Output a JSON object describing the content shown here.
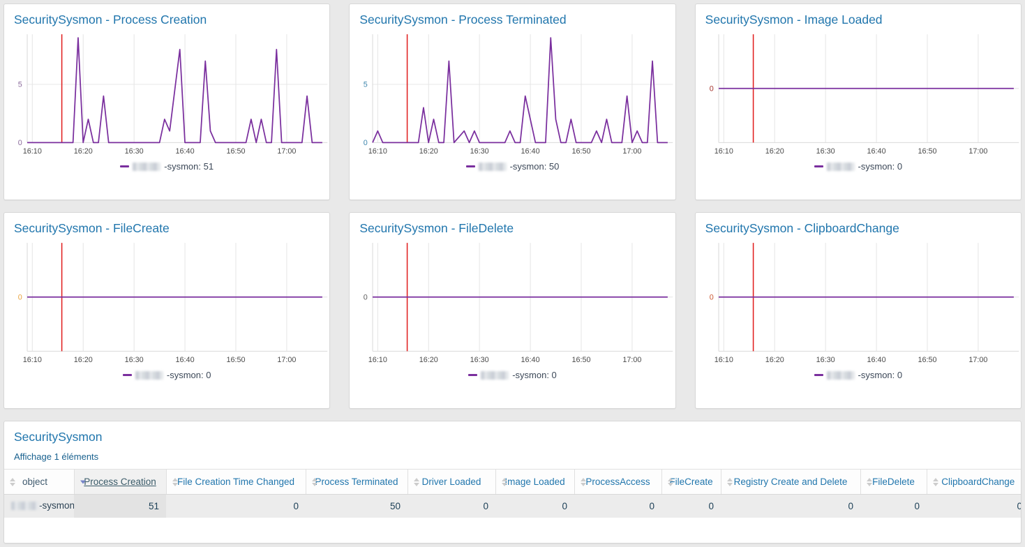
{
  "colors": {
    "title_blue": "#2176ad",
    "series_purple": "#7a2f9e",
    "threshold_red": "#e01f1f",
    "grid": "#e6e6e6",
    "axis": "#d9d9d9",
    "tick_text": "#4a4a4a",
    "legend_text": "#3c4858"
  },
  "axis": {
    "t_domain": [
      9,
      68
    ],
    "red_line_t": 15.8,
    "x_ticks": [
      {
        "t": 10,
        "label": "16:10"
      },
      {
        "t": 20,
        "label": "16:20"
      },
      {
        "t": 30,
        "label": "16:30"
      },
      {
        "t": 40,
        "label": "16:40"
      },
      {
        "t": 50,
        "label": "16:50"
      },
      {
        "t": 60,
        "label": "17:00"
      }
    ]
  },
  "panels": [
    {
      "title": "SecuritySysmon - Process Creation",
      "legend_suffix": "-sysmon: 51",
      "flat": false,
      "ylim": [
        0,
        9.3
      ],
      "y_ticks": [
        {
          "v": 5,
          "label": "5"
        },
        {
          "v": 0,
          "label": "0"
        }
      ],
      "y_label_color": "#8a6a9b",
      "chart_data": {
        "type": "line",
        "x_unit": "minutes after 16:00",
        "points": [
          [
            9,
            0
          ],
          [
            18,
            0
          ],
          [
            19,
            9
          ],
          [
            20,
            0
          ],
          [
            21,
            2
          ],
          [
            22,
            0
          ],
          [
            23,
            0
          ],
          [
            24,
            4
          ],
          [
            25,
            0
          ],
          [
            35,
            0
          ],
          [
            36,
            2
          ],
          [
            37,
            1
          ],
          [
            39,
            8
          ],
          [
            40,
            0
          ],
          [
            43,
            0
          ],
          [
            44,
            7
          ],
          [
            45,
            1
          ],
          [
            46,
            0
          ],
          [
            52,
            0
          ],
          [
            53,
            2
          ],
          [
            54,
            0
          ],
          [
            55,
            2
          ],
          [
            56,
            0
          ],
          [
            57,
            0
          ],
          [
            58,
            8
          ],
          [
            59,
            0
          ],
          [
            63,
            0
          ],
          [
            64,
            4
          ],
          [
            65,
            0
          ],
          [
            67,
            0
          ]
        ]
      }
    },
    {
      "title": "SecuritySysmon - Process Terminated",
      "legend_suffix": "-sysmon: 50",
      "flat": false,
      "ylim": [
        0,
        9.3
      ],
      "y_ticks": [
        {
          "v": 5,
          "label": "5"
        },
        {
          "v": 0,
          "label": "0"
        }
      ],
      "y_label_color": "#3e86ad",
      "chart_data": {
        "type": "line",
        "x_unit": "minutes after 16:00",
        "points": [
          [
            9,
            0
          ],
          [
            10,
            1
          ],
          [
            11,
            0
          ],
          [
            18,
            0
          ],
          [
            19,
            3
          ],
          [
            20,
            0
          ],
          [
            21,
            2
          ],
          [
            22,
            0
          ],
          [
            23,
            0
          ],
          [
            24,
            7
          ],
          [
            25,
            0
          ],
          [
            27,
            1
          ],
          [
            28,
            0
          ],
          [
            29,
            1
          ],
          [
            30,
            0
          ],
          [
            35,
            0
          ],
          [
            36,
            1
          ],
          [
            37,
            0
          ],
          [
            38,
            0
          ],
          [
            39,
            4
          ],
          [
            41,
            0
          ],
          [
            43,
            0
          ],
          [
            44,
            9
          ],
          [
            45,
            2
          ],
          [
            46,
            0
          ],
          [
            47,
            0
          ],
          [
            48,
            2
          ],
          [
            49,
            0
          ],
          [
            52,
            0
          ],
          [
            53,
            1
          ],
          [
            54,
            0
          ],
          [
            55,
            2
          ],
          [
            56,
            0
          ],
          [
            58,
            0
          ],
          [
            59,
            4
          ],
          [
            60,
            0
          ],
          [
            61,
            1
          ],
          [
            62,
            0
          ],
          [
            63,
            0
          ],
          [
            64,
            7
          ],
          [
            65,
            0
          ],
          [
            67,
            0
          ]
        ]
      }
    },
    {
      "title": "SecuritySysmon - Image Loaded",
      "legend_suffix": "-sysmon: 0",
      "flat": true,
      "ylim": [
        -1,
        1
      ],
      "y_ticks": [
        {
          "v": 0,
          "label": "0"
        }
      ],
      "y_label_color": "#a5332c",
      "chart_data": {
        "type": "line",
        "x_unit": "minutes after 16:00",
        "points": [
          [
            9,
            0
          ],
          [
            67,
            0
          ]
        ]
      }
    },
    {
      "title": "SecuritySysmon - FileCreate",
      "legend_suffix": "-sysmon: 0",
      "flat": true,
      "ylim": [
        -1,
        1
      ],
      "y_ticks": [
        {
          "v": 0,
          "label": "0"
        }
      ],
      "y_label_color": "#e9a33f",
      "chart_data": {
        "type": "line",
        "x_unit": "minutes after 16:00",
        "points": [
          [
            9,
            0
          ],
          [
            67,
            0
          ]
        ]
      }
    },
    {
      "title": "SecuritySysmon - FileDelete",
      "legend_suffix": "-sysmon: 0",
      "flat": true,
      "ylim": [
        -1,
        1
      ],
      "y_ticks": [
        {
          "v": 0,
          "label": "0"
        }
      ],
      "y_label_color": "#5f5f5f",
      "chart_data": {
        "type": "line",
        "x_unit": "minutes after 16:00",
        "points": [
          [
            9,
            0
          ],
          [
            67,
            0
          ]
        ]
      }
    },
    {
      "title": "SecuritySysmon - ClipboardChange",
      "legend_suffix": "-sysmon: 0",
      "flat": true,
      "ylim": [
        -1,
        1
      ],
      "y_ticks": [
        {
          "v": 0,
          "label": "0"
        }
      ],
      "y_label_color": "#cc5a33",
      "chart_data": {
        "type": "line",
        "x_unit": "minutes after 16:00",
        "points": [
          [
            9,
            0
          ],
          [
            67,
            0
          ]
        ]
      }
    }
  ],
  "bottom": {
    "title": "SecuritySysmon",
    "count_text": "Affichage 1 éléments",
    "columns": [
      {
        "label": "object",
        "sorted": false
      },
      {
        "label": "Process Creation",
        "sorted": true
      },
      {
        "label": "File Creation Time Changed",
        "sorted": false
      },
      {
        "label": "Process Terminated",
        "sorted": false
      },
      {
        "label": "Driver Loaded",
        "sorted": false
      },
      {
        "label": "Image Loaded",
        "sorted": false
      },
      {
        "label": "ProcessAccess",
        "sorted": false
      },
      {
        "label": "FileCreate",
        "sorted": false
      },
      {
        "label": "Registry Create and Delete",
        "sorted": false
      },
      {
        "label": "FileDelete",
        "sorted": false
      },
      {
        "label": "ClipboardChange",
        "sorted": false
      }
    ],
    "row": {
      "host_suffix": "-sysmon",
      "values": [
        "51",
        "0",
        "50",
        "0",
        "0",
        "0",
        "0",
        "0",
        "0",
        "0"
      ]
    }
  }
}
